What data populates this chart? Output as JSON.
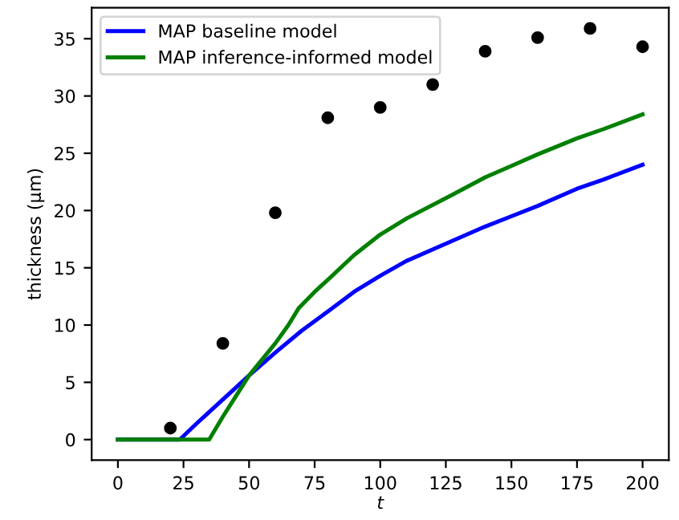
{
  "chart_data": {
    "type": "line",
    "xlabel": "t",
    "ylabel": "thickness (μm)",
    "xlim": [
      -10,
      210
    ],
    "ylim": [
      -1.8,
      37.7
    ],
    "xticks": [
      0,
      25,
      50,
      75,
      100,
      125,
      150,
      175,
      200
    ],
    "yticks": [
      0,
      5,
      10,
      15,
      20,
      25,
      30,
      35
    ],
    "grid": false,
    "legend": "top left",
    "line_style": "solid",
    "series": [
      {
        "name": "MAP baseline model",
        "color": "#0000ff",
        "x": [
          0,
          23.6,
          30,
          40,
          50,
          60,
          70,
          80.7,
          90,
          100,
          110,
          126,
          140,
          150,
          160,
          175,
          185,
          200
        ],
        "values": [
          0,
          0,
          1.4,
          3.5,
          5.6,
          7.6,
          9.5,
          11.3,
          12.9,
          14.3,
          15.6,
          17.2,
          18.6,
          19.5,
          20.4,
          21.9,
          22.7,
          24.0
        ]
      },
      {
        "name": "MAP inference-informed model",
        "color": "#008000",
        "x": [
          0,
          34.8,
          40,
          45,
          50,
          55,
          60,
          65,
          69,
          75,
          80.7,
          90,
          100,
          110,
          126,
          140,
          150,
          160,
          175,
          185,
          200
        ],
        "values": [
          0,
          0,
          2.0,
          3.8,
          5.6,
          7.0,
          8.4,
          10.0,
          11.5,
          12.9,
          14.1,
          16.1,
          17.9,
          19.3,
          21.2,
          22.9,
          23.9,
          24.9,
          26.3,
          27.1,
          28.4
        ]
      },
      {
        "type": "scatter",
        "color": "#000000",
        "marker": "circle",
        "x": [
          20,
          40,
          60,
          80,
          100,
          120,
          140,
          160,
          180,
          200
        ],
        "values": [
          1.0,
          8.4,
          19.8,
          28.1,
          29.0,
          31.0,
          33.9,
          35.1,
          35.9,
          34.3
        ]
      }
    ]
  }
}
